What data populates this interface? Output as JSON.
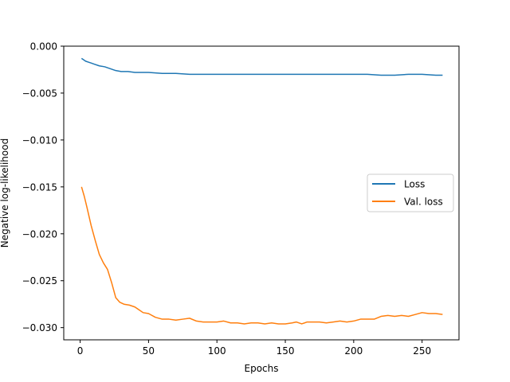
{
  "chart_data": {
    "type": "line",
    "title": "",
    "xlabel": "Epochs",
    "ylabel": "Negative log-likelihood",
    "xlim": [
      -12,
      277
    ],
    "ylim": [
      -0.0313,
      0.0
    ],
    "xticks": [
      0,
      50,
      100,
      150,
      200,
      250
    ],
    "xtick_labels": [
      "0",
      "50",
      "100",
      "150",
      "200",
      "250"
    ],
    "yticks": [
      0.0,
      -0.005,
      -0.01,
      -0.015,
      -0.02,
      -0.025,
      -0.03
    ],
    "ytick_labels": [
      "0.000",
      "−0.005",
      "−0.010",
      "−0.015",
      "−0.020",
      "−0.025",
      "−0.030"
    ],
    "grid": false,
    "legend_position": "center-right",
    "series": [
      {
        "name": "Loss",
        "color": "#1f77b4",
        "x": [
          1,
          2,
          4,
          6,
          8,
          10,
          14,
          18,
          22,
          26,
          30,
          35,
          40,
          45,
          50,
          60,
          70,
          80,
          90,
          100,
          110,
          120,
          130,
          140,
          150,
          160,
          170,
          180,
          190,
          200,
          210,
          220,
          230,
          240,
          250,
          260,
          265
        ],
        "y": [
          -0.0013,
          -0.0014,
          -0.0016,
          -0.0017,
          -0.0018,
          -0.0019,
          -0.0021,
          -0.0022,
          -0.0024,
          -0.0026,
          -0.0027,
          -0.0027,
          -0.0028,
          -0.0028,
          -0.0028,
          -0.0029,
          -0.0029,
          -0.003,
          -0.003,
          -0.003,
          -0.003,
          -0.003,
          -0.003,
          -0.003,
          -0.003,
          -0.003,
          -0.003,
          -0.003,
          -0.003,
          -0.003,
          -0.003,
          -0.0031,
          -0.0031,
          -0.003,
          -0.003,
          -0.0031,
          -0.0031
        ]
      },
      {
        "name": "Val. loss",
        "color": "#ff7f0e",
        "x": [
          1,
          3,
          5,
          8,
          11,
          14,
          17,
          20,
          23,
          26,
          29,
          32,
          36,
          40,
          43,
          46,
          50,
          55,
          60,
          65,
          70,
          75,
          80,
          85,
          90,
          95,
          100,
          105,
          110,
          115,
          120,
          125,
          130,
          135,
          140,
          145,
          150,
          155,
          158,
          162,
          166,
          170,
          175,
          180,
          185,
          190,
          195,
          200,
          205,
          210,
          215,
          220,
          225,
          230,
          235,
          240,
          245,
          250,
          255,
          260,
          265
        ],
        "y": [
          -0.015,
          -0.016,
          -0.0172,
          -0.0191,
          -0.0207,
          -0.0222,
          -0.0231,
          -0.0238,
          -0.0252,
          -0.0268,
          -0.0273,
          -0.0275,
          -0.0276,
          -0.0278,
          -0.0281,
          -0.0284,
          -0.0285,
          -0.0289,
          -0.0291,
          -0.0291,
          -0.0292,
          -0.0291,
          -0.029,
          -0.0293,
          -0.0294,
          -0.0294,
          -0.0294,
          -0.0293,
          -0.0295,
          -0.0295,
          -0.0296,
          -0.0295,
          -0.0295,
          -0.0296,
          -0.0295,
          -0.0296,
          -0.0296,
          -0.0295,
          -0.0294,
          -0.0296,
          -0.0294,
          -0.0294,
          -0.0294,
          -0.0295,
          -0.0294,
          -0.0293,
          -0.0294,
          -0.0293,
          -0.0291,
          -0.0291,
          -0.0291,
          -0.0288,
          -0.0287,
          -0.0288,
          -0.0287,
          -0.0288,
          -0.0286,
          -0.0284,
          -0.0285,
          -0.0285,
          -0.0286
        ]
      }
    ]
  }
}
